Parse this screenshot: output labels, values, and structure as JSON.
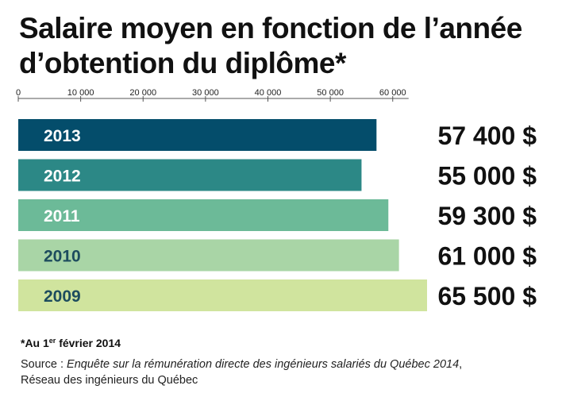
{
  "title_line1": "Salaire moyen en fonction de l’année",
  "title_line2": "d’obtention du diplôme*",
  "footnote": {
    "prefix": "*Au 1",
    "superscript": "er",
    "suffix": " février 2014"
  },
  "source": {
    "label": "Source : ",
    "publication": "Enquête sur la rémunération directe des ingénieurs salariés du Québec 2014",
    "separator": ",",
    "publisher": "Réseau des ingénieurs du Québec"
  },
  "chart_data": {
    "type": "bar",
    "orientation": "horizontal",
    "title": "Salaire moyen en fonction de l’année d’obtention du diplôme*",
    "categories": [
      "2013",
      "2012",
      "2011",
      "2010",
      "2009"
    ],
    "values": [
      57400,
      55000,
      59300,
      61000,
      65500
    ],
    "value_labels": [
      "57 400 $",
      "55 000 $",
      "59 300 $",
      "61 000 $",
      "65 500 $"
    ],
    "bar_colors": [
      "#044d6b",
      "#2c8886",
      "#6cba98",
      "#a9d5a6",
      "#d0e49e"
    ],
    "label_colors": [
      "#ffffff",
      "#ffffff",
      "#ffffff",
      "#1d4c5e",
      "#1d4c5e"
    ],
    "xlim": [
      0,
      65500
    ],
    "xticks": [
      0,
      10000,
      20000,
      30000,
      40000,
      50000,
      60000
    ],
    "xtick_labels": [
      "0",
      "10 000",
      "20 000",
      "30 000",
      "40 000",
      "50 000",
      "60 000"
    ],
    "xaxis_position": "top",
    "grid": false,
    "legend": "none"
  }
}
